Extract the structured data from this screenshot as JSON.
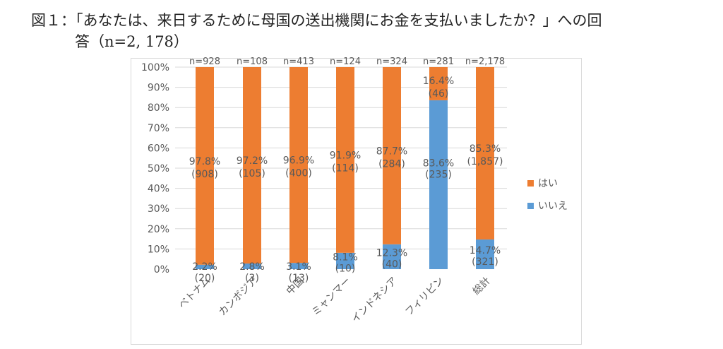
{
  "figure": {
    "title_line1": "図１：「あなたは、来日するために母国の送出機関にお金を支払いましたか？」への回",
    "title_line2": "答（n=2, 178）"
  },
  "chart_data": {
    "type": "bar",
    "stacked": true,
    "percent": true,
    "categories": [
      "ベトナム",
      "カンボジア",
      "中国",
      "ミャンマー",
      "インドネシア",
      "フィリピン",
      "総計"
    ],
    "n_labels": [
      "n=928",
      "n=108",
      "n=413",
      "n=124",
      "n=324",
      "n=281",
      "n=2,178"
    ],
    "ylim": [
      0,
      100
    ],
    "y_ticks": [
      "0%",
      "10%",
      "20%",
      "30%",
      "40%",
      "50%",
      "60%",
      "70%",
      "80%",
      "90%",
      "100%"
    ],
    "series": [
      {
        "name": "いいえ",
        "color": "#5b9bd5",
        "values": [
          2.2,
          2.8,
          3.1,
          8.1,
          12.3,
          83.6,
          14.7
        ],
        "labels": [
          "2.2%",
          "2.8%",
          "3.1%",
          "8.1%",
          "12.3%",
          "83.6%",
          "14.7%"
        ],
        "counts": [
          "(20)",
          "(3)",
          "(13)",
          "(10)",
          "(40)",
          "(235)",
          "(321)"
        ]
      },
      {
        "name": "はい",
        "color": "#ed7d31",
        "values": [
          97.8,
          97.2,
          96.9,
          91.9,
          87.7,
          16.4,
          85.3
        ],
        "labels": [
          "97.8%",
          "97.2%",
          "96.9%",
          "91.9%",
          "87.7%",
          "16.4%",
          "85.3%"
        ],
        "counts": [
          "(908)",
          "(105)",
          "(400)",
          "(114)",
          "(284)",
          "(46)",
          "(1,857)"
        ]
      }
    ],
    "legend": [
      {
        "label": "はい",
        "color": "#ed7d31"
      },
      {
        "label": "いいえ",
        "color": "#5b9bd5"
      }
    ],
    "legend_position": "right",
    "grid": true
  }
}
